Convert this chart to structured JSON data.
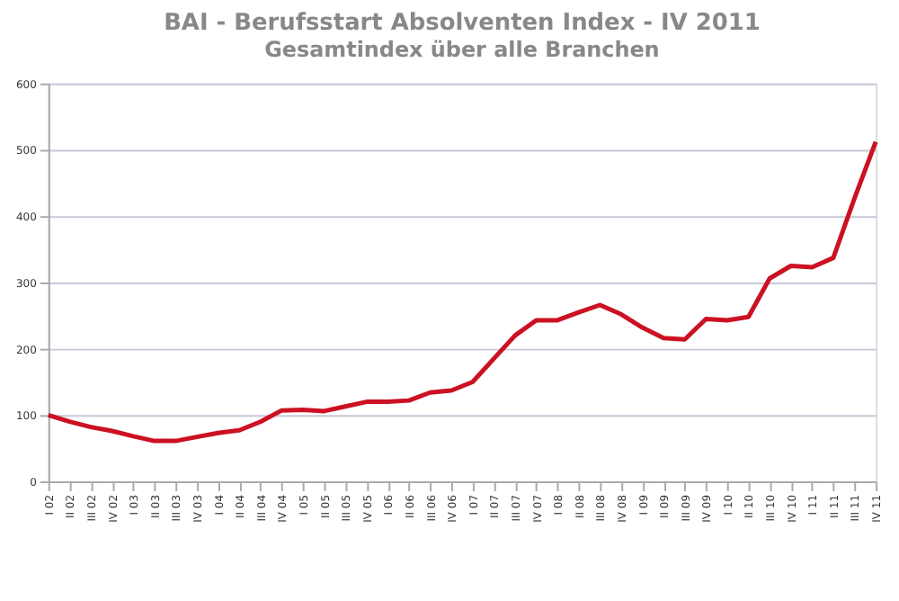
{
  "chart_data": {
    "type": "line",
    "title": "BAI - Berufsstart Absolventen Index - IV 2011",
    "subtitle": "Gesamtindex über alle Branchen",
    "categories": [
      "I 02",
      "II 02",
      "III 02",
      "IV 02",
      "I 03",
      "II 03",
      "III 03",
      "IV 03",
      "I 04",
      "II 04",
      "III 04",
      "IV 04",
      "I 05",
      "II 05",
      "III 05",
      "IV 05",
      "I 06",
      "II 06",
      "III 06",
      "IV 06",
      "I 07",
      "II 07",
      "III 07",
      "IV 07",
      "I 08",
      "II 08",
      "III 08",
      "IV 08",
      "I 09",
      "II 09",
      "III 09",
      "IV 09",
      "I 10",
      "II 10",
      "III 10",
      "IV 10",
      "I 11",
      "II 11",
      "III 11",
      "IV 11"
    ],
    "series": [
      {
        "color": "#cc1122",
        "values": [
          100,
          90,
          82,
          76,
          68,
          61,
          61,
          67,
          73,
          77,
          90,
          107,
          108,
          106,
          113,
          120,
          120,
          122,
          134,
          137,
          150,
          185,
          220,
          243,
          243,
          255,
          266,
          252,
          232,
          216,
          214,
          245,
          243,
          248,
          306,
          325,
          323,
          337,
          427,
          512
        ]
      }
    ],
    "ylim": [
      0,
      600
    ],
    "yticks": [
      0,
      100,
      200,
      300,
      400,
      500,
      600
    ],
    "grid": "y",
    "marker": "none",
    "line_style": "solid"
  }
}
